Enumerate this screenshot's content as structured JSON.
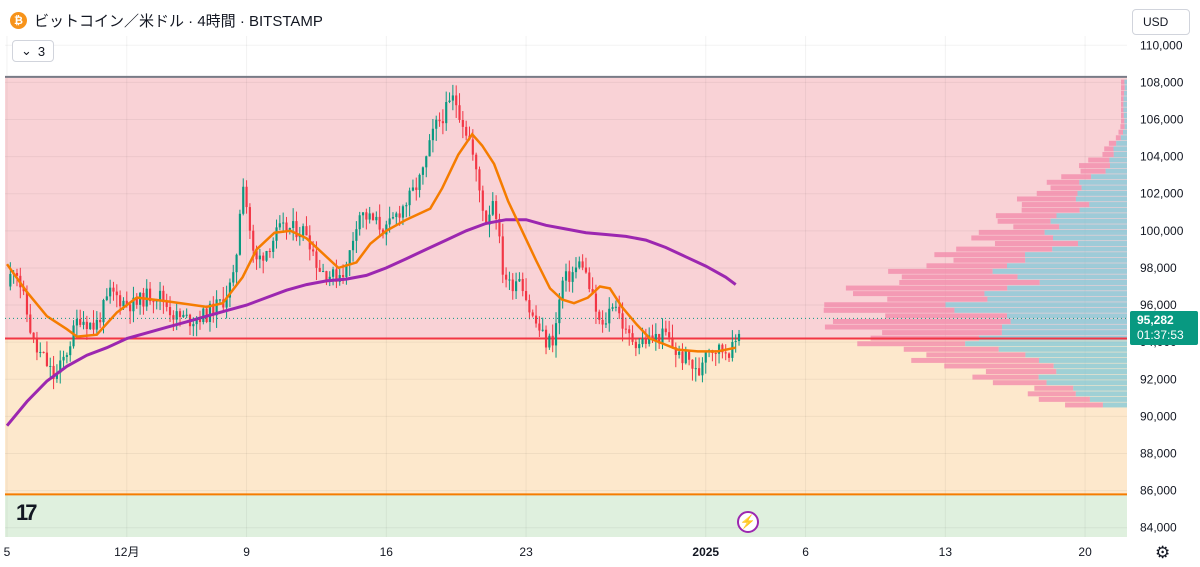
{
  "header": {
    "symbol_title": "ビットコイン／米ドル · 4時間 · BITSTAMP",
    "coin_icon": "bitcoin-icon",
    "collapse_count": "3",
    "currency": "USD"
  },
  "last_price": {
    "price": "95,282",
    "countdown": "01:37:53"
  },
  "colors": {
    "up": "#089981",
    "down": "#f23645",
    "ema_short": "#f57c00",
    "ema_long": "#9c27b0",
    "zone_upper": "#f9d2d6",
    "zone_mid": "#fde8cc",
    "zone_lower": "#dff0de",
    "vp_up": "#7fc8d8",
    "vp_down": "#f28cab"
  },
  "chart_data": {
    "type": "candlestick",
    "timeframe": "4時間",
    "y_axis_labels": [
      "84,000",
      "86,000",
      "88,000",
      "90,000",
      "92,000",
      "94,000",
      "96,000",
      "98,000",
      "100,000",
      "102,000",
      "104,000",
      "106,000",
      "108,000",
      "110,000"
    ],
    "ylim": [
      83500,
      110500
    ],
    "x_axis_labels": [
      "5",
      "12月",
      "9",
      "16",
      "23",
      "2025",
      "6",
      "13",
      "20"
    ],
    "x_label_days": [
      -26,
      -20,
      -14,
      -7,
      0,
      9,
      14,
      21,
      28
    ],
    "xlim": [
      -26.1,
      30.1
    ],
    "horizontal_levels": [
      {
        "price": 108300,
        "color": "#787b86",
        "name": "resistance-line"
      },
      {
        "price": 94200,
        "color": "#f23645",
        "name": "mid-line"
      },
      {
        "price": 85800,
        "color": "#f57c00",
        "name": "support-line"
      }
    ],
    "zones": [
      {
        "from": 94200,
        "to": 108300,
        "color": "#f9d2d6"
      },
      {
        "from": 85800,
        "to": 94200,
        "color": "#fde8cc"
      },
      {
        "from": 83500,
        "to": 85800,
        "color": "#dff0de"
      }
    ],
    "current_price": 95282,
    "price_path": [
      [
        -26.0,
        97000
      ],
      [
        -25.6,
        98300
      ],
      [
        -25.2,
        96500
      ],
      [
        -24.6,
        93600
      ],
      [
        -24.2,
        93200
      ],
      [
        -23.6,
        92000
      ],
      [
        -23.0,
        93500
      ],
      [
        -22.4,
        95400
      ],
      [
        -21.6,
        94800
      ],
      [
        -20.8,
        96700
      ],
      [
        -20.2,
        96200
      ],
      [
        -19.6,
        96000
      ],
      [
        -19.0,
        96500
      ],
      [
        -18.4,
        96600
      ],
      [
        -17.6,
        95400
      ],
      [
        -16.8,
        95200
      ],
      [
        -16.0,
        95500
      ],
      [
        -15.2,
        96200
      ],
      [
        -14.6,
        97500
      ],
      [
        -14.2,
        103000
      ],
      [
        -13.6,
        98200
      ],
      [
        -13.0,
        99000
      ],
      [
        -12.4,
        100000
      ],
      [
        -11.8,
        100100
      ],
      [
        -11.0,
        100000
      ],
      [
        -10.4,
        98000
      ],
      [
        -9.6,
        97500
      ],
      [
        -9.0,
        98000
      ],
      [
        -8.4,
        101000
      ],
      [
        -7.6,
        100500
      ],
      [
        -7.0,
        100000
      ],
      [
        -6.4,
        101000
      ],
      [
        -5.8,
        101800
      ],
      [
        -5.2,
        103000
      ],
      [
        -4.6,
        105500
      ],
      [
        -4.0,
        106500
      ],
      [
        -3.6,
        107200
      ],
      [
        -3.2,
        106000
      ],
      [
        -2.8,
        104800
      ],
      [
        -2.4,
        102500
      ],
      [
        -2.0,
        100500
      ],
      [
        -1.6,
        102000
      ],
      [
        -1.2,
        98000
      ],
      [
        -0.8,
        97000
      ],
      [
        -0.3,
        97700
      ],
      [
        0.2,
        95600
      ],
      [
        0.6,
        94800
      ],
      [
        1.0,
        94000
      ],
      [
        1.4,
        94200
      ],
      [
        1.8,
        97200
      ],
      [
        2.4,
        97800
      ],
      [
        2.8,
        98400
      ],
      [
        3.4,
        96000
      ],
      [
        3.8,
        94600
      ],
      [
        4.4,
        96400
      ],
      [
        5.0,
        94400
      ],
      [
        5.6,
        94000
      ],
      [
        6.4,
        94200
      ],
      [
        7.0,
        94400
      ],
      [
        7.6,
        93300
      ],
      [
        8.2,
        93000
      ],
      [
        8.6,
        92100
      ],
      [
        9.0,
        93800
      ],
      [
        9.6,
        93600
      ],
      [
        10.4,
        93600
      ],
      [
        10.8,
        95282
      ]
    ],
    "ema_short": [
      [
        -26.0,
        98200
      ],
      [
        -25.0,
        96700
      ],
      [
        -24.0,
        95400
      ],
      [
        -23.0,
        94700
      ],
      [
        -22.5,
        94300
      ],
      [
        -21.5,
        94400
      ],
      [
        -20.5,
        95600
      ],
      [
        -19.5,
        96400
      ],
      [
        -18.0,
        96200
      ],
      [
        -16.0,
        95900
      ],
      [
        -15.2,
        96100
      ],
      [
        -14.2,
        97500
      ],
      [
        -13.5,
        99000
      ],
      [
        -12.6,
        99900
      ],
      [
        -11.8,
        100000
      ],
      [
        -11.0,
        99600
      ],
      [
        -10.3,
        98900
      ],
      [
        -9.4,
        98000
      ],
      [
        -8.5,
        98300
      ],
      [
        -7.8,
        99300
      ],
      [
        -7.0,
        100000
      ],
      [
        -6.0,
        100600
      ],
      [
        -4.8,
        101200
      ],
      [
        -4.2,
        102300
      ],
      [
        -3.4,
        104100
      ],
      [
        -2.7,
        105200
      ],
      [
        -2.2,
        104600
      ],
      [
        -1.6,
        103600
      ],
      [
        -0.9,
        101600
      ],
      [
        -0.2,
        100000
      ],
      [
        0.5,
        98400
      ],
      [
        1.2,
        96900
      ],
      [
        1.8,
        96300
      ],
      [
        2.4,
        96100
      ],
      [
        3.1,
        96400
      ],
      [
        3.7,
        97000
      ],
      [
        4.2,
        96900
      ],
      [
        4.8,
        95900
      ],
      [
        5.5,
        95000
      ],
      [
        6.2,
        94200
      ],
      [
        6.9,
        93900
      ],
      [
        7.6,
        93600
      ],
      [
        8.6,
        93500
      ],
      [
        9.6,
        93500
      ],
      [
        10.5,
        93700
      ]
    ],
    "ema_long": [
      [
        -26.0,
        89500
      ],
      [
        -25.0,
        90800
      ],
      [
        -24.0,
        91900
      ],
      [
        -23.0,
        92700
      ],
      [
        -22.0,
        93300
      ],
      [
        -21.0,
        93700
      ],
      [
        -20.0,
        94200
      ],
      [
        -19.0,
        94500
      ],
      [
        -18.0,
        94800
      ],
      [
        -17.0,
        95100
      ],
      [
        -16.0,
        95400
      ],
      [
        -15.0,
        95700
      ],
      [
        -14.0,
        96000
      ],
      [
        -13.0,
        96400
      ],
      [
        -12.0,
        96800
      ],
      [
        -11.0,
        97100
      ],
      [
        -10.0,
        97300
      ],
      [
        -9.0,
        97400
      ],
      [
        -8.0,
        97600
      ],
      [
        -7.0,
        98000
      ],
      [
        -6.0,
        98500
      ],
      [
        -5.0,
        99000
      ],
      [
        -4.0,
        99500
      ],
      [
        -3.0,
        100000
      ],
      [
        -2.0,
        100400
      ],
      [
        -1.0,
        100600
      ],
      [
        0.0,
        100600
      ],
      [
        1.0,
        100300
      ],
      [
        2.0,
        100100
      ],
      [
        3.0,
        99900
      ],
      [
        4.0,
        99800
      ],
      [
        5.0,
        99700
      ],
      [
        6.0,
        99500
      ],
      [
        7.0,
        99100
      ],
      [
        8.0,
        98600
      ],
      [
        9.0,
        98100
      ],
      [
        10.0,
        97500
      ],
      [
        10.5,
        97100
      ]
    ],
    "volume_profile": {
      "max_width_fraction": 0.28,
      "poc_price": 95500
    },
    "grid": true
  }
}
